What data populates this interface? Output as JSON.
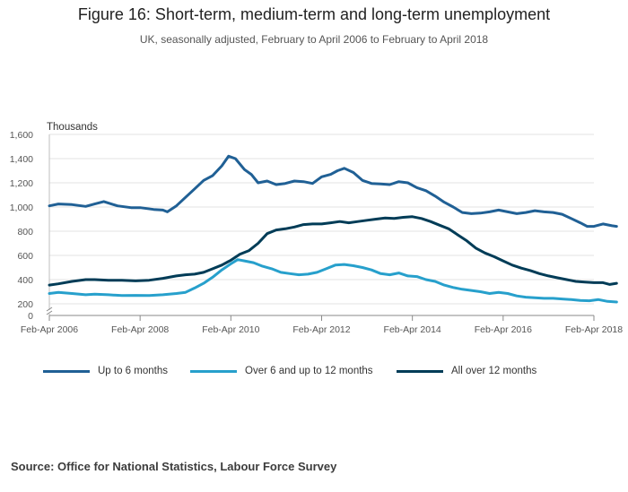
{
  "title": "Figure 16: Short-term, medium-term and long-term unemployment",
  "subtitle": "UK, seasonally adjusted, February to April 2006 to February to April 2018",
  "source": "Source: Office for National Statistics, Labour Force Survey",
  "chart_data": {
    "type": "line",
    "title": "Figure 16: Short-term, medium-term and long-term unemployment",
    "ylabel": "Thousands",
    "xlabel": "",
    "ylim": [
      0,
      1600
    ],
    "yticks": [
      "0",
      "200",
      "400",
      "600",
      "800",
      "1,000",
      "1,200",
      "1,400",
      "1,600"
    ],
    "y_axis_break": true,
    "xtick_labels": [
      "Feb-Apr 2006",
      "Feb-Apr 2008",
      "Feb-Apr 2010",
      "Feb-Apr 2012",
      "Feb-Apr 2014",
      "Feb-Apr 2016",
      "Feb-Apr 2018"
    ],
    "x_start_year": 2006,
    "x_end_year": 2018,
    "legend_position": "bottom",
    "grid": true,
    "series": [
      {
        "name": "Up to 6 months",
        "color": "#206095",
        "points": [
          [
            2006.0,
            1010
          ],
          [
            2006.2,
            1025
          ],
          [
            2006.5,
            1020
          ],
          [
            2006.8,
            1005
          ],
          [
            2007.0,
            1025
          ],
          [
            2007.2,
            1045
          ],
          [
            2007.5,
            1010
          ],
          [
            2007.8,
            995
          ],
          [
            2008.0,
            995
          ],
          [
            2008.3,
            980
          ],
          [
            2008.5,
            975
          ],
          [
            2008.6,
            960
          ],
          [
            2008.8,
            1010
          ],
          [
            2009.0,
            1080
          ],
          [
            2009.2,
            1150
          ],
          [
            2009.4,
            1220
          ],
          [
            2009.6,
            1260
          ],
          [
            2009.8,
            1340
          ],
          [
            2009.95,
            1420
          ],
          [
            2010.1,
            1400
          ],
          [
            2010.3,
            1310
          ],
          [
            2010.45,
            1270
          ],
          [
            2010.6,
            1200
          ],
          [
            2010.8,
            1215
          ],
          [
            2011.0,
            1185
          ],
          [
            2011.2,
            1195
          ],
          [
            2011.4,
            1215
          ],
          [
            2011.6,
            1210
          ],
          [
            2011.8,
            1195
          ],
          [
            2012.0,
            1250
          ],
          [
            2012.2,
            1270
          ],
          [
            2012.35,
            1300
          ],
          [
            2012.5,
            1320
          ],
          [
            2012.7,
            1285
          ],
          [
            2012.9,
            1220
          ],
          [
            2013.1,
            1195
          ],
          [
            2013.3,
            1190
          ],
          [
            2013.5,
            1185
          ],
          [
            2013.7,
            1210
          ],
          [
            2013.9,
            1200
          ],
          [
            2014.1,
            1160
          ],
          [
            2014.3,
            1135
          ],
          [
            2014.5,
            1090
          ],
          [
            2014.7,
            1040
          ],
          [
            2014.9,
            1000
          ],
          [
            2015.1,
            955
          ],
          [
            2015.3,
            945
          ],
          [
            2015.5,
            950
          ],
          [
            2015.7,
            960
          ],
          [
            2015.9,
            975
          ],
          [
            2016.1,
            960
          ],
          [
            2016.3,
            945
          ],
          [
            2016.5,
            955
          ],
          [
            2016.7,
            970
          ],
          [
            2016.9,
            960
          ],
          [
            2017.1,
            955
          ],
          [
            2017.3,
            940
          ],
          [
            2017.5,
            905
          ],
          [
            2017.7,
            870
          ],
          [
            2017.85,
            840
          ],
          [
            2018.0,
            840
          ],
          [
            2018.2,
            860
          ],
          [
            2018.4,
            845
          ],
          [
            2018.5,
            840
          ]
        ]
      },
      {
        "name": "Over 6 and up to 12 months",
        "color": "#27a0cc",
        "points": [
          [
            2006.0,
            285
          ],
          [
            2006.2,
            295
          ],
          [
            2006.5,
            285
          ],
          [
            2006.8,
            275
          ],
          [
            2007.0,
            280
          ],
          [
            2007.3,
            275
          ],
          [
            2007.6,
            268
          ],
          [
            2007.9,
            270
          ],
          [
            2008.2,
            268
          ],
          [
            2008.5,
            275
          ],
          [
            2008.8,
            285
          ],
          [
            2009.0,
            295
          ],
          [
            2009.2,
            330
          ],
          [
            2009.4,
            370
          ],
          [
            2009.6,
            420
          ],
          [
            2009.8,
            480
          ],
          [
            2010.0,
            530
          ],
          [
            2010.15,
            565
          ],
          [
            2010.3,
            555
          ],
          [
            2010.5,
            540
          ],
          [
            2010.7,
            510
          ],
          [
            2010.9,
            490
          ],
          [
            2011.1,
            460
          ],
          [
            2011.3,
            450
          ],
          [
            2011.5,
            440
          ],
          [
            2011.7,
            445
          ],
          [
            2011.9,
            460
          ],
          [
            2012.1,
            490
          ],
          [
            2012.3,
            520
          ],
          [
            2012.5,
            525
          ],
          [
            2012.7,
            515
          ],
          [
            2012.9,
            500
          ],
          [
            2013.1,
            480
          ],
          [
            2013.3,
            450
          ],
          [
            2013.5,
            440
          ],
          [
            2013.7,
            455
          ],
          [
            2013.9,
            430
          ],
          [
            2014.1,
            425
          ],
          [
            2014.3,
            400
          ],
          [
            2014.5,
            385
          ],
          [
            2014.7,
            355
          ],
          [
            2014.9,
            335
          ],
          [
            2015.1,
            320
          ],
          [
            2015.3,
            310
          ],
          [
            2015.5,
            300
          ],
          [
            2015.7,
            285
          ],
          [
            2015.9,
            295
          ],
          [
            2016.1,
            285
          ],
          [
            2016.3,
            265
          ],
          [
            2016.5,
            255
          ],
          [
            2016.7,
            250
          ],
          [
            2016.9,
            245
          ],
          [
            2017.1,
            245
          ],
          [
            2017.3,
            240
          ],
          [
            2017.5,
            235
          ],
          [
            2017.7,
            228
          ],
          [
            2017.9,
            225
          ],
          [
            2018.1,
            235
          ],
          [
            2018.3,
            220
          ],
          [
            2018.5,
            215
          ]
        ]
      },
      {
        "name": "All over 12 months",
        "color": "#003c57",
        "points": [
          [
            2006.0,
            355
          ],
          [
            2006.2,
            365
          ],
          [
            2006.5,
            385
          ],
          [
            2006.8,
            400
          ],
          [
            2007.0,
            400
          ],
          [
            2007.3,
            395
          ],
          [
            2007.6,
            395
          ],
          [
            2007.9,
            390
          ],
          [
            2008.2,
            395
          ],
          [
            2008.5,
            410
          ],
          [
            2008.8,
            430
          ],
          [
            2009.0,
            440
          ],
          [
            2009.2,
            445
          ],
          [
            2009.4,
            460
          ],
          [
            2009.6,
            490
          ],
          [
            2009.8,
            520
          ],
          [
            2010.0,
            560
          ],
          [
            2010.2,
            610
          ],
          [
            2010.4,
            640
          ],
          [
            2010.6,
            700
          ],
          [
            2010.8,
            780
          ],
          [
            2011.0,
            810
          ],
          [
            2011.2,
            820
          ],
          [
            2011.4,
            835
          ],
          [
            2011.6,
            855
          ],
          [
            2011.8,
            860
          ],
          [
            2012.0,
            860
          ],
          [
            2012.2,
            870
          ],
          [
            2012.4,
            880
          ],
          [
            2012.6,
            870
          ],
          [
            2012.8,
            880
          ],
          [
            2013.0,
            890
          ],
          [
            2013.2,
            900
          ],
          [
            2013.4,
            910
          ],
          [
            2013.6,
            905
          ],
          [
            2013.8,
            915
          ],
          [
            2014.0,
            920
          ],
          [
            2014.2,
            905
          ],
          [
            2014.4,
            880
          ],
          [
            2014.6,
            850
          ],
          [
            2014.8,
            820
          ],
          [
            2015.0,
            770
          ],
          [
            2015.2,
            720
          ],
          [
            2015.4,
            660
          ],
          [
            2015.6,
            620
          ],
          [
            2015.8,
            590
          ],
          [
            2016.0,
            555
          ],
          [
            2016.2,
            520
          ],
          [
            2016.4,
            495
          ],
          [
            2016.6,
            475
          ],
          [
            2016.8,
            450
          ],
          [
            2017.0,
            430
          ],
          [
            2017.2,
            415
          ],
          [
            2017.4,
            400
          ],
          [
            2017.6,
            385
          ],
          [
            2017.8,
            380
          ],
          [
            2018.0,
            375
          ],
          [
            2018.2,
            375
          ],
          [
            2018.35,
            360
          ],
          [
            2018.5,
            370
          ]
        ]
      }
    ]
  }
}
